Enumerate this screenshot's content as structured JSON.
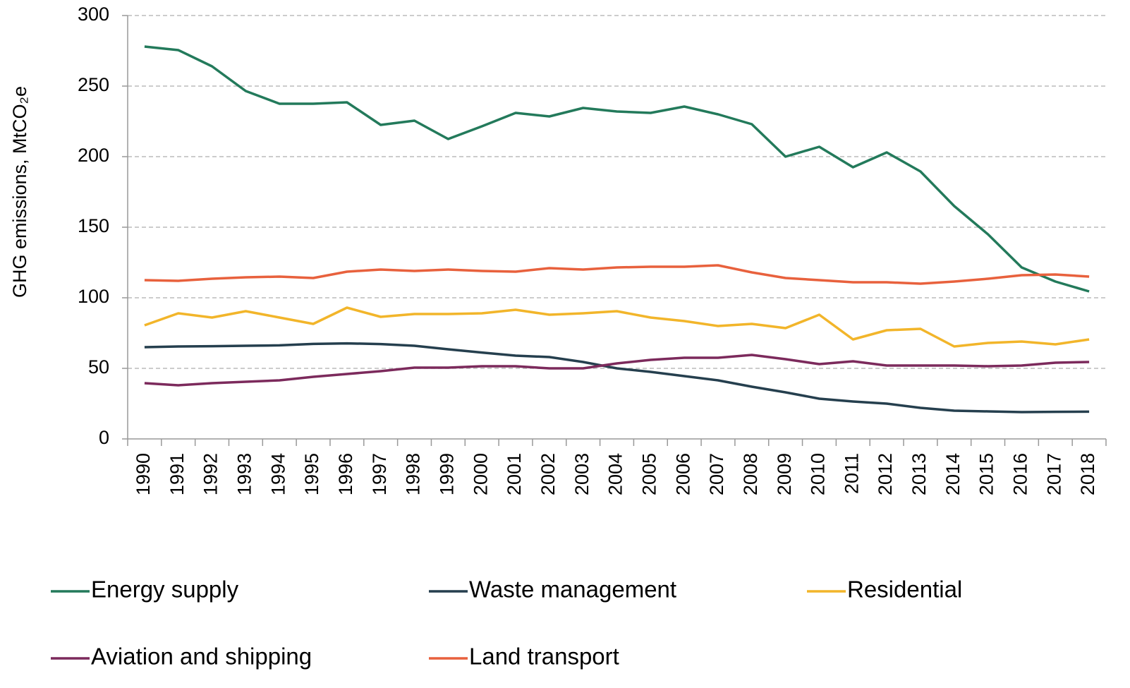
{
  "chart_data": {
    "type": "line",
    "y_axis_label": "GHG emissions, MtCO₂e",
    "categories": [
      "1990",
      "1991",
      "1992",
      "1993",
      "1994",
      "1995",
      "1996",
      "1997",
      "1998",
      "1999",
      "2000",
      "2001",
      "2002",
      "2003",
      "2004",
      "2005",
      "2006",
      "2007",
      "2008",
      "2009",
      "2010",
      "2011",
      "2012",
      "2013",
      "2014",
      "2015",
      "2016",
      "2017",
      "2018"
    ],
    "series": [
      {
        "name": "Energy supply",
        "color": "#237a5b",
        "values": [
          278,
          275.5,
          264,
          246.5,
          237.5,
          237.5,
          238.5,
          222.5,
          225.5,
          212.5,
          221.5,
          231,
          228.5,
          234.5,
          232,
          231,
          235.5,
          230,
          223,
          200,
          207,
          192.5,
          203,
          189.5,
          165,
          145,
          121.5,
          111.5,
          104.5
        ]
      },
      {
        "name": "Waste management",
        "color": "#253f4e",
        "values": [
          65,
          65.5,
          65.7,
          66,
          66.3,
          67.3,
          67.7,
          67.2,
          66,
          63.5,
          61.2,
          59,
          58,
          54.5,
          50,
          47.5,
          44.5,
          41.5,
          37,
          33,
          28.5,
          26.5,
          25,
          22,
          20,
          19.5,
          19,
          19.2,
          19.3
        ]
      },
      {
        "name": "Residential",
        "color": "#f2b52a",
        "values": [
          80.5,
          89,
          86,
          90.5,
          86,
          81.5,
          93,
          86.5,
          88.5,
          88.5,
          89,
          91.5,
          88,
          89,
          90.5,
          86,
          83.5,
          80,
          81.5,
          78.5,
          88,
          70.5,
          77,
          78,
          65.5,
          68,
          69,
          67,
          70.5
        ]
      },
      {
        "name": "Aviation and shipping",
        "color": "#7c2a5c",
        "values": [
          39.5,
          38,
          39.5,
          40.5,
          41.5,
          44,
          46,
          48,
          50.5,
          50.5,
          51.5,
          51.5,
          50,
          50,
          53.5,
          56,
          57.5,
          57.5,
          59.5,
          56.5,
          53,
          55,
          52,
          52,
          52,
          51.5,
          52,
          54,
          54.5
        ]
      },
      {
        "name": "Land transport",
        "color": "#e8613d",
        "values": [
          112.5,
          112,
          113.5,
          114.5,
          115,
          114,
          118.5,
          120,
          119,
          120,
          119,
          118.5,
          121,
          120,
          121.5,
          122,
          122,
          123,
          118,
          114,
          112.5,
          111,
          111,
          110,
          111.5,
          113.5,
          116,
          116.5,
          115
        ]
      }
    ],
    "ylim": [
      0,
      300
    ],
    "yticks": [
      0,
      50,
      100,
      150,
      200,
      250,
      300
    ],
    "grid": true,
    "legend": "bottom"
  }
}
